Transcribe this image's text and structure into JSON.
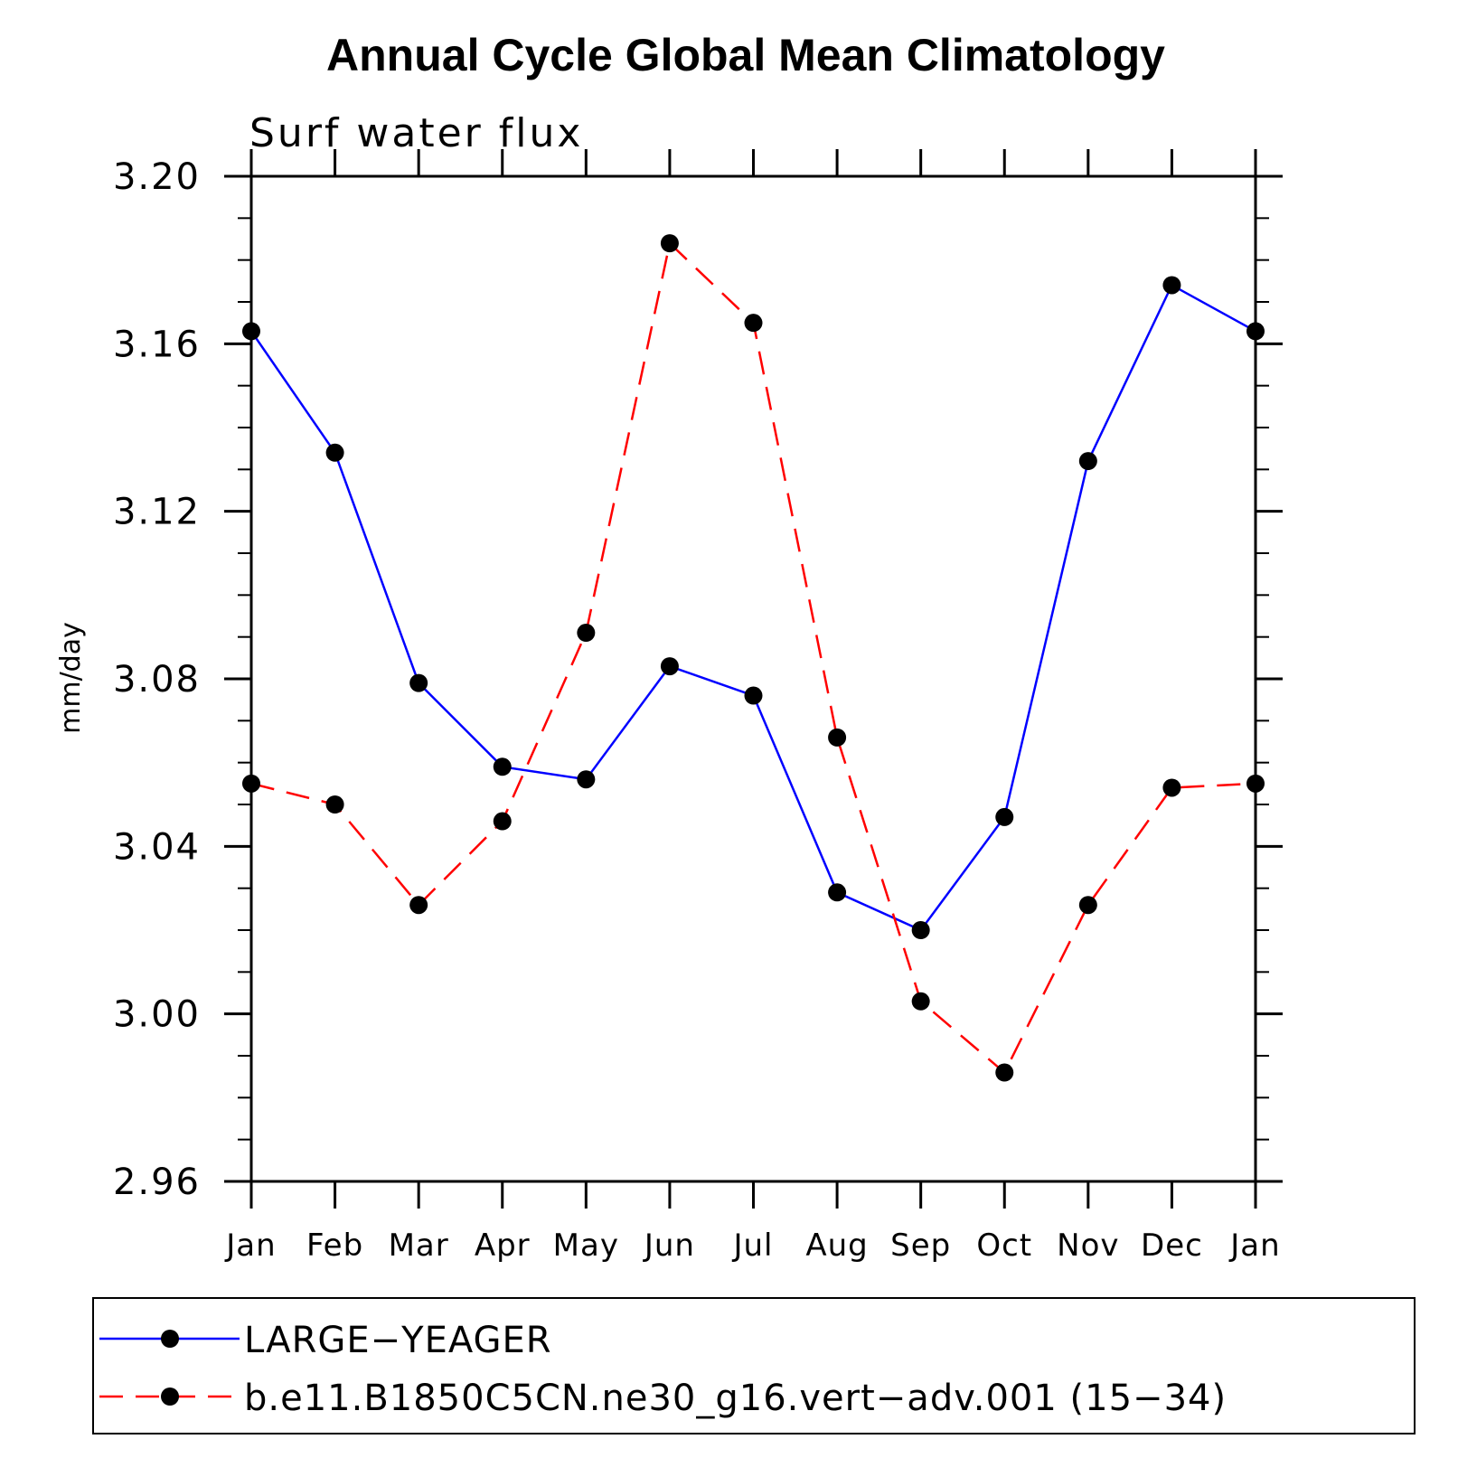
{
  "chart_data": {
    "type": "line",
    "title": "Annual Cycle Global Mean Climatology",
    "subtitle": "Surf water flux",
    "xlabel": "",
    "ylabel": "mm/day",
    "categories": [
      "Jan",
      "Feb",
      "Mar",
      "Apr",
      "May",
      "Jun",
      "Jul",
      "Aug",
      "Sep",
      "Oct",
      "Nov",
      "Dec",
      "Jan"
    ],
    "ylim": [
      2.96,
      3.2
    ],
    "yticks": [
      "2.96",
      "3.00",
      "3.04",
      "3.08",
      "3.12",
      "3.16",
      "3.20"
    ],
    "ytick_values": [
      2.96,
      3.0,
      3.04,
      3.08,
      3.12,
      3.16,
      3.2
    ],
    "grid": false,
    "legend_position": "bottom",
    "series": [
      {
        "name": "LARGE−YEAGER",
        "color": "#0000ff",
        "line_style": "solid",
        "values": [
          3.163,
          3.134,
          3.079,
          3.059,
          3.056,
          3.083,
          3.076,
          3.029,
          3.02,
          3.047,
          3.132,
          3.174,
          3.163
        ]
      },
      {
        "name": "b.e11.B1850C5CN.ne30_g16.vert−adv.001 (15−34)",
        "color": "#ff0000",
        "line_style": "dashed",
        "values": [
          3.055,
          3.05,
          3.026,
          3.046,
          3.091,
          3.184,
          3.165,
          3.066,
          3.003,
          2.986,
          3.026,
          3.054,
          3.055
        ]
      }
    ]
  }
}
